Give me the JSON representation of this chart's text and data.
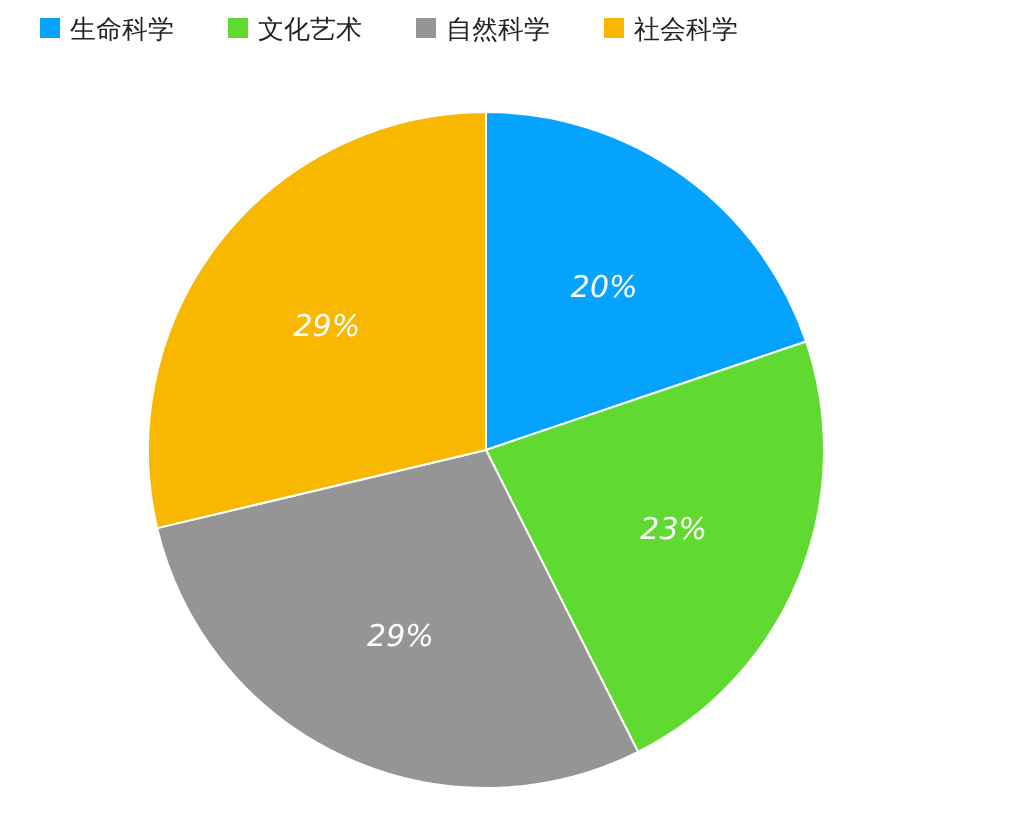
{
  "chart_data": {
    "type": "pie",
    "categories": [
      "生命科学",
      "文化艺术",
      "自然科学",
      "社会科学"
    ],
    "values": [
      20,
      23,
      29,
      29
    ],
    "colors": [
      "#05a3fd",
      "#60da31",
      "#959595",
      "#f8b800"
    ],
    "value_labels": [
      "20%",
      "23%",
      "29%",
      "29%"
    ],
    "legend": "top"
  }
}
